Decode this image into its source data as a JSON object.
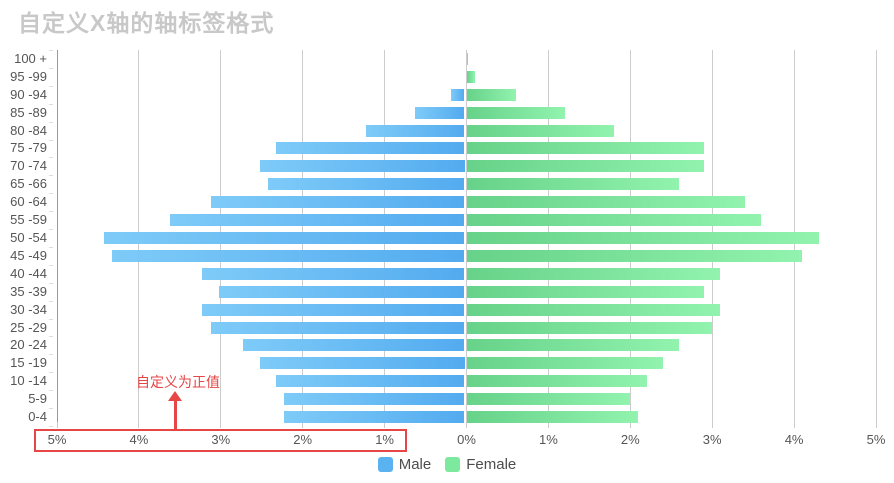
{
  "title": "自定义X轴的轴标签格式",
  "annotation": {
    "text": "自定义为正值"
  },
  "colors": {
    "male": "#5bb2f1",
    "male_gradient_tip": "#7ecbf8",
    "male_gradient_axis": "#53abef",
    "female": "#7de99f",
    "female_gradient_axis": "#67d289",
    "female_gradient_tip": "#91f3ae",
    "highlight_red": "#e64646",
    "title_text": "#c8c8c8",
    "axis_label": "#555555",
    "grid_line": "#cccccc",
    "axis_line": "#999999",
    "y_tick": "#dddddd"
  },
  "chart_data": {
    "type": "bar",
    "subtype": "population-pyramid",
    "title": "自定义X轴的轴标签格式",
    "ylabel": "",
    "xlabel": "",
    "xlim": [
      -5,
      5
    ],
    "x_unit": "%",
    "grid": true,
    "legend_position": "bottom",
    "categories": [
      "100 +",
      "95 -99",
      "90 -94",
      "85 -89",
      "80 -84",
      "75 -79",
      "70 -74",
      "65 -66",
      "60 -64",
      "55 -59",
      "50 -54",
      "45 -49",
      "40 -44",
      "35 -39",
      "30 -34",
      "25 -29",
      "20 -24",
      "15 -19",
      "10 -14",
      "5-9",
      "0-4"
    ],
    "series": [
      {
        "name": "Male",
        "side": "left",
        "values": [
          0,
          0,
          0.17,
          0.6,
          1.2,
          2.3,
          2.5,
          2.4,
          3.1,
          3.6,
          4.4,
          4.3,
          3.2,
          3.0,
          3.2,
          3.1,
          2.7,
          2.5,
          2.3,
          2.2,
          2.2
        ]
      },
      {
        "name": "Female",
        "side": "right",
        "values": [
          0.02,
          0.1,
          0.6,
          1.2,
          1.8,
          2.9,
          2.9,
          2.6,
          3.4,
          3.6,
          4.3,
          4.1,
          3.1,
          2.9,
          3.1,
          3.0,
          2.6,
          2.4,
          2.2,
          2.0,
          2.1
        ]
      }
    ],
    "x_tick_labels": [
      "5%",
      "4%",
      "3%",
      "2%",
      "1%",
      "0%",
      "1%",
      "2%",
      "3%",
      "4%",
      "5%"
    ],
    "annotation": {
      "text": "自定义为正值",
      "target": "left-x-axis-labels"
    }
  }
}
